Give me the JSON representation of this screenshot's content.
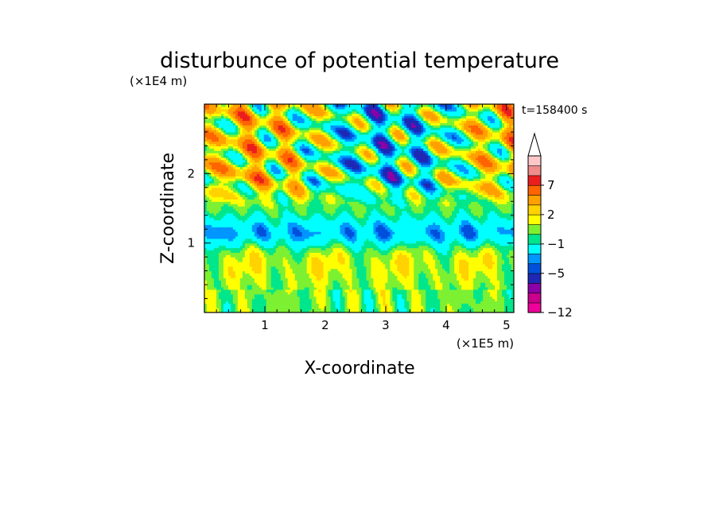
{
  "chart_data": {
    "type": "heatmap",
    "title": "disturbunce of potential temperature",
    "time_label": "t=158400 s",
    "xlabel": "X-coordinate",
    "ylabel": "Z-coordinate",
    "x_unit_label": "(×1E5 m)",
    "y_unit_label": "(×1E4 m)",
    "xlim": [
      0,
      5.12
    ],
    "ylim": [
      0,
      3.0
    ],
    "x_ticks": [
      {
        "value": 1,
        "label": "1"
      },
      {
        "value": 2,
        "label": "2"
      },
      {
        "value": 3,
        "label": "3"
      },
      {
        "value": 4,
        "label": "4"
      },
      {
        "value": 5,
        "label": "5"
      }
    ],
    "y_ticks": [
      {
        "value": 1,
        "label": "1"
      },
      {
        "value": 2,
        "label": "2"
      }
    ],
    "colorbar": {
      "levels": [
        -12,
        -11,
        -9,
        -7,
        -5,
        -4,
        -3,
        -1,
        0,
        1,
        2,
        3,
        5,
        7,
        9,
        11
      ],
      "colors": [
        "#f0009a",
        "#c8008c",
        "#8c00a8",
        "#1e28b4",
        "#0050dc",
        "#0096ff",
        "#00ffff",
        "#00e68c",
        "#7df032",
        "#ffff00",
        "#ffd200",
        "#ffa000",
        "#ff6400",
        "#eb1e1e",
        "#f08c8c",
        "#ffc8c8"
      ],
      "tick_labels": [
        {
          "value": -12,
          "label": "−12"
        },
        {
          "value": -5,
          "label": "−5"
        },
        {
          "value": -1,
          "label": "−1"
        },
        {
          "value": 2,
          "label": "2"
        },
        {
          "value": 7,
          "label": "7"
        }
      ],
      "extend": "max"
    }
  }
}
